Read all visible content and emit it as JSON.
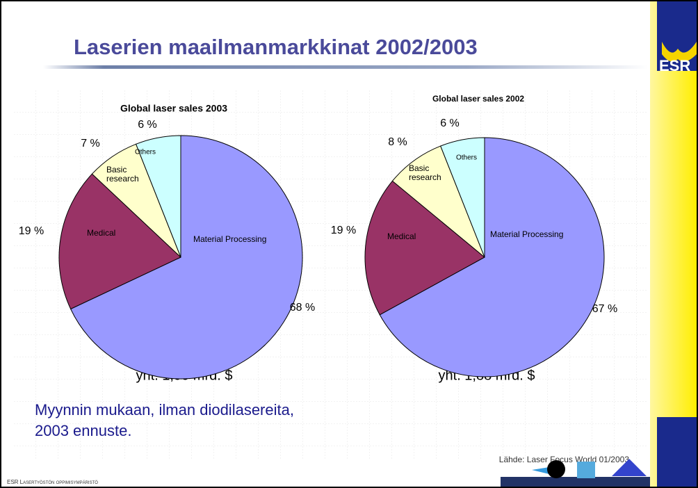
{
  "slide": {
    "title": "Laserien maailmanmarkkinat 2002/2003",
    "totals": [
      "yht. 1,99 mrd. $",
      "yht. 1,88 mrd. $"
    ],
    "note": [
      "Myynnin mukaan, ilman diodilasereita,",
      "2003 ennuste."
    ],
    "source": "Lähde: Laser Focus World 01/2003",
    "footer": "ESR Lasertyöstön oppimisympäristö",
    "logo": "ESR"
  },
  "chart_data": [
    {
      "type": "pie",
      "title": "Global laser sales 2003",
      "categories": [
        "Material Processing",
        "Medical",
        "Basic research",
        "Others"
      ],
      "values": [
        68,
        19,
        7,
        6
      ],
      "value_labels": [
        "68 %",
        "19 %",
        "7 %",
        "6 %"
      ],
      "colors": [
        "#9999ff",
        "#993366",
        "#ffffcc",
        "#ccffff"
      ]
    },
    {
      "type": "pie",
      "title": "Global laser sales 2002",
      "categories": [
        "Material Processing",
        "Medical",
        "Basic research",
        "Others"
      ],
      "values": [
        67,
        19,
        8,
        6
      ],
      "value_labels": [
        "67 %",
        "19 %",
        "8 %",
        "6 %"
      ],
      "colors": [
        "#9999ff",
        "#993366",
        "#ffffcc",
        "#ccffff"
      ]
    }
  ]
}
